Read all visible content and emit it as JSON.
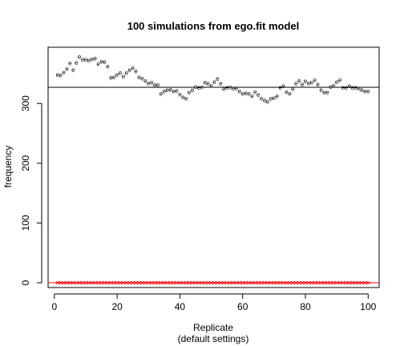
{
  "chart_data": {
    "type": "scatter",
    "title": "100 simulations from ego.fit model",
    "xlabel": "Replicate",
    "xlabel_sub": "(default settings)",
    "ylabel": "frequency",
    "xlim": [
      -2,
      103.5
    ],
    "ylim": [
      -8,
      394
    ],
    "x_ticks": [
      0,
      20,
      40,
      60,
      80,
      100
    ],
    "y_ticks": [
      0,
      100,
      200,
      300
    ],
    "reference_line": {
      "y": 327,
      "color": "#000000"
    },
    "zero_line": {
      "y": 0,
      "color": "#ff0000"
    },
    "series": [
      {
        "marker": "e",
        "color": "#000000",
        "x": [
          1,
          2,
          3,
          4,
          5,
          6,
          7,
          8,
          9,
          10,
          11,
          12,
          13,
          14,
          15,
          16,
          17,
          18,
          19,
          20,
          21,
          22,
          23,
          24,
          25,
          26,
          27,
          28,
          29,
          30,
          31,
          32,
          33,
          34,
          35,
          36,
          37,
          38,
          39,
          40,
          41,
          42,
          43,
          44,
          45,
          46,
          47,
          48,
          49,
          50,
          51,
          52,
          53,
          54,
          55,
          56,
          57,
          58,
          59,
          60,
          61,
          62,
          63,
          64,
          65,
          66,
          67,
          68,
          69,
          70,
          71,
          72,
          73,
          74,
          75,
          76,
          77,
          78,
          79,
          80,
          81,
          82,
          83,
          84,
          85,
          86,
          87,
          88,
          89,
          90,
          91,
          92,
          93,
          94,
          95,
          96,
          97,
          98,
          99,
          100
        ],
        "y": [
          348,
          347,
          352,
          358,
          367,
          356,
          368,
          378,
          373,
          373,
          372,
          374,
          375,
          366,
          370,
          369,
          362,
          343,
          344,
          348,
          351,
          345,
          351,
          356,
          359,
          354,
          344,
          342,
          338,
          334,
          335,
          331,
          331,
          316,
          320,
          322,
          323,
          320,
          321,
          315,
          310,
          308,
          318,
          322,
          328,
          326,
          327,
          335,
          333,
          330,
          336,
          341,
          333,
          324,
          326,
          327,
          325,
          325,
          320,
          316,
          317,
          316,
          312,
          319,
          314,
          308,
          305,
          303,
          308,
          309,
          312,
          326,
          329,
          319,
          316,
          324,
          333,
          338,
          332,
          337,
          334,
          335,
          339,
          332,
          322,
          318,
          318,
          328,
          330,
          336,
          339,
          326,
          326,
          329,
          326,
          326,
          325,
          322,
          320,
          320
        ]
      },
      {
        "marker": "×",
        "color": "#ff0000",
        "x": [
          1,
          2,
          3,
          4,
          5,
          6,
          7,
          8,
          9,
          10,
          11,
          12,
          13,
          14,
          15,
          16,
          17,
          18,
          19,
          20,
          21,
          22,
          23,
          24,
          25,
          26,
          27,
          28,
          29,
          30,
          31,
          32,
          33,
          34,
          35,
          36,
          37,
          38,
          39,
          40,
          41,
          42,
          43,
          44,
          45,
          46,
          47,
          48,
          49,
          50,
          51,
          52,
          53,
          54,
          55,
          56,
          57,
          58,
          59,
          60,
          61,
          62,
          63,
          64,
          65,
          66,
          67,
          68,
          69,
          70,
          71,
          72,
          73,
          74,
          75,
          76,
          77,
          78,
          79,
          80,
          81,
          82,
          83,
          84,
          85,
          86,
          87,
          88,
          89,
          90,
          91,
          92,
          93,
          94,
          95,
          96,
          97,
          98,
          99,
          100
        ],
        "y": [
          0,
          0,
          0,
          0,
          0,
          0,
          0,
          0,
          0,
          0,
          0,
          0,
          0,
          0,
          0,
          0,
          0,
          0,
          0,
          0,
          0,
          0,
          0,
          0,
          0,
          0,
          0,
          0,
          0,
          0,
          0,
          0,
          0,
          0,
          0,
          0,
          0,
          0,
          0,
          0,
          0,
          0,
          0,
          0,
          0,
          0,
          0,
          0,
          0,
          0,
          0,
          0,
          0,
          0,
          0,
          0,
          0,
          0,
          0,
          0,
          0,
          0,
          0,
          0,
          0,
          0,
          0,
          0,
          0,
          0,
          0,
          0,
          0,
          0,
          0,
          0,
          0,
          0,
          0,
          0,
          0,
          0,
          0,
          0,
          0,
          0,
          0,
          0,
          0,
          0,
          0,
          0,
          0,
          0,
          0,
          0,
          0,
          0,
          0,
          0
        ]
      }
    ]
  }
}
